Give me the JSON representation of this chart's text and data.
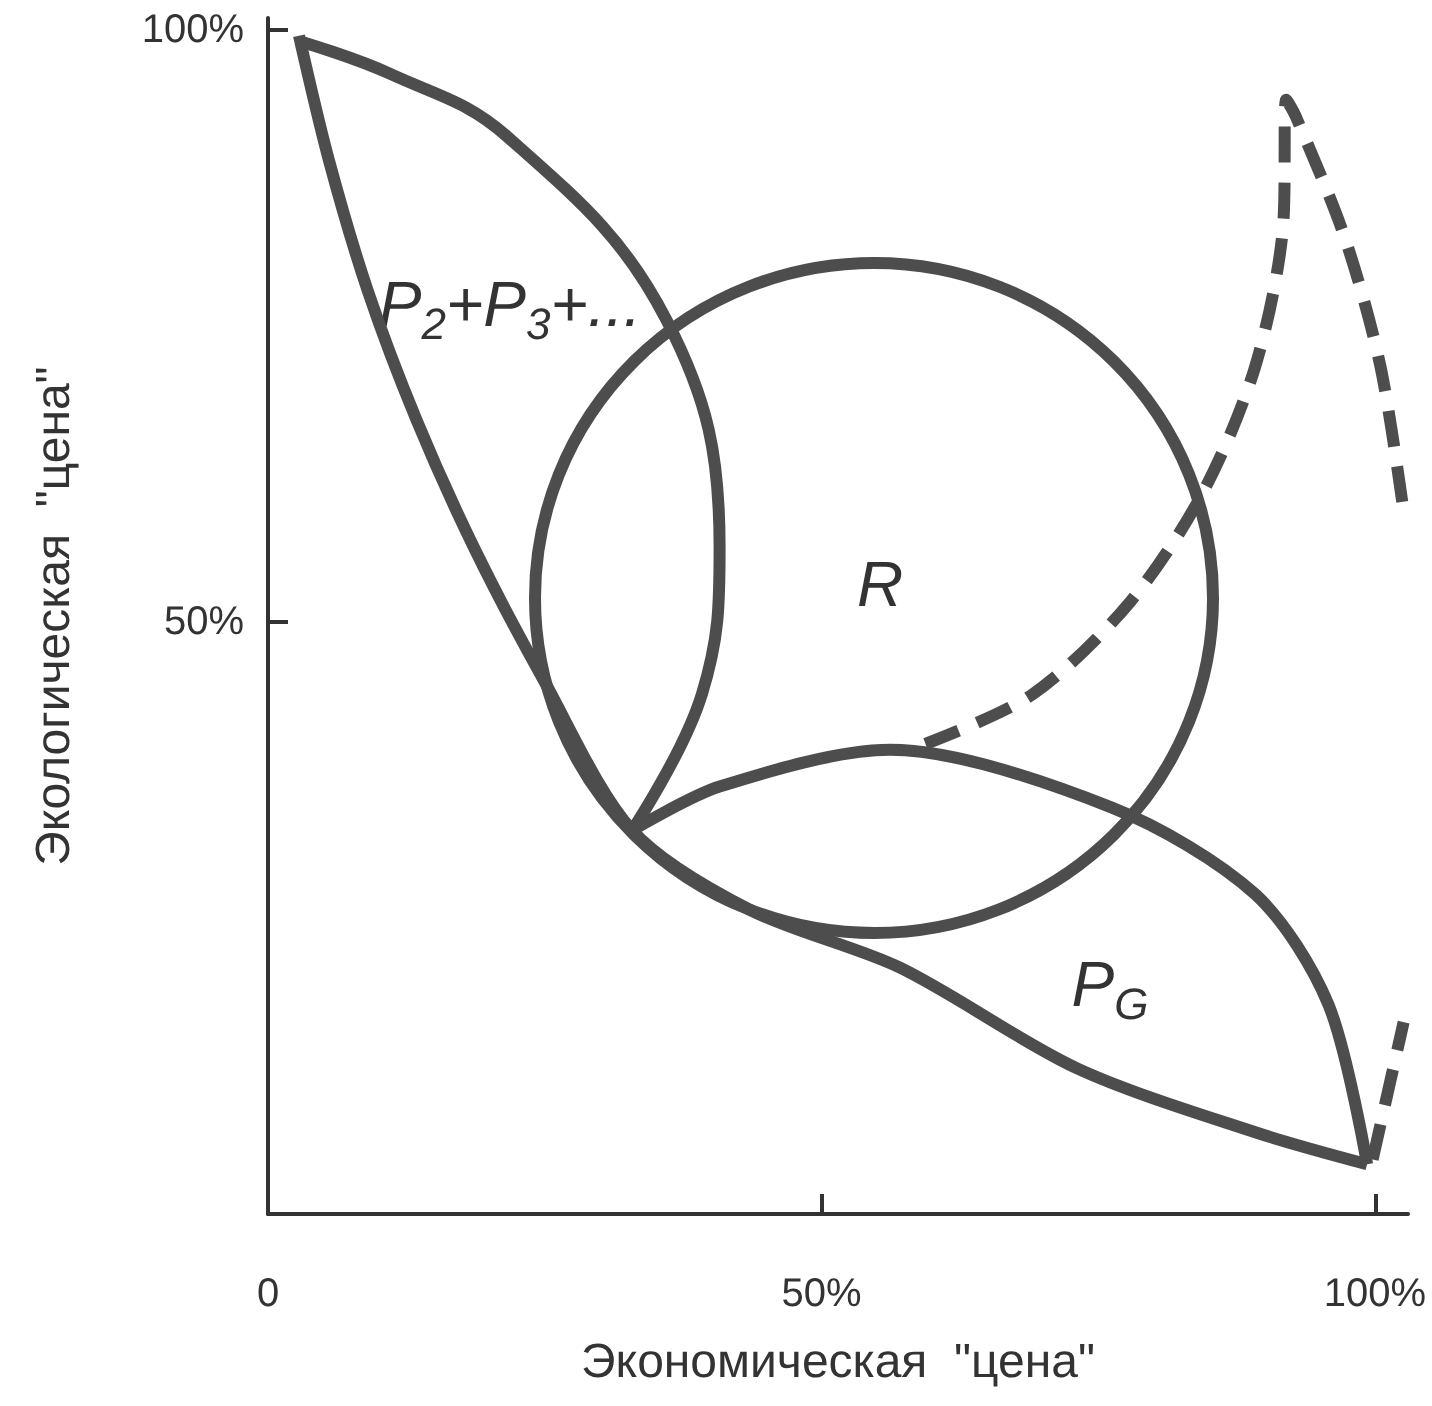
{
  "chart_data": {
    "type": "line",
    "xlabel": "Экономическая  \"цена\"",
    "ylabel": "Экологическая  \"цена\"",
    "xlim": [
      0,
      103
    ],
    "ylim": [
      0,
      101
    ],
    "xticks": [
      {
        "value": 0,
        "label": "0"
      },
      {
        "value": 50,
        "label": "50%"
      },
      {
        "value": 100,
        "label": "100%"
      }
    ],
    "yticks": [
      {
        "value": 50,
        "label": "50%"
      },
      {
        "value": 100,
        "label": "100%"
      }
    ],
    "marker": "none",
    "series": [
      {
        "color": "#4d4d4d",
        "line_style": "solid",
        "x": [
          2.8,
          5.5,
          9.0,
          13.4,
          18.7,
          24.9,
          32.9,
          43.5,
          57.1,
          73.1,
          89.2,
          99.3
        ],
        "values": [
          99.5,
          89.0,
          78.0,
          67.1,
          56.1,
          45.1,
          32.4,
          25.7,
          20.8,
          12.3,
          6.9,
          4.2
        ]
      },
      {
        "color": "#4d4d4d",
        "line_style": "solid",
        "x": [
          3.0,
          11.0,
          21.6,
          36.0,
          40.8,
          39.2,
          32.9
        ],
        "values": [
          99.0,
          96.3,
          91.0,
          75.5,
          56.3,
          43.9,
          32.4
        ]
      },
      {
        "color": "#4d4d4d",
        "line_style": "solid",
        "x": [
          32.9,
          40.8,
          56.2,
          76.3,
          89.2,
          95.8,
          99.3
        ],
        "values": [
          32.4,
          36.1,
          39.2,
          34.3,
          27.0,
          17.7,
          4.2
        ]
      },
      {
        "color": "#4d4d4d",
        "line_style": "dashed",
        "x": [
          59.4,
          69.1,
          77.9,
          84.5,
          89.2,
          91.7,
          92.0,
          92.9,
          97.3,
          100.5,
          102.6
        ],
        "values": [
          39.7,
          43.9,
          51.7,
          61.0,
          71.6,
          83.3,
          94.1,
          92.6,
          82.4,
          71.6,
          59.3
        ]
      },
      {
        "color": "#4d4d4d",
        "line_style": "dashed",
        "x": [
          99.8,
          102.6
        ],
        "values": [
          4.6,
          16.2
        ]
      }
    ],
    "annotations": [
      "P$_{2}$+P$_{3}$+...",
      "R",
      "P$_{G}$"
    ]
  }
}
